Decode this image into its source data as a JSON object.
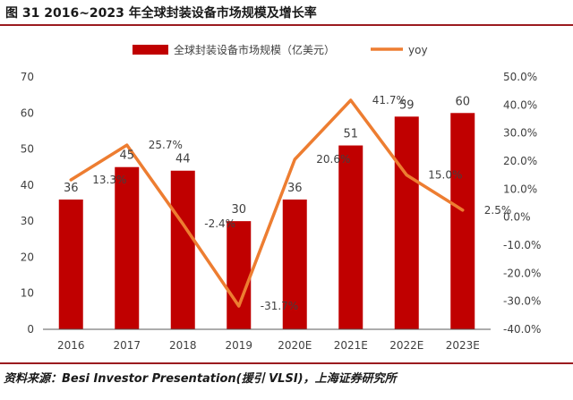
{
  "figure_title": "图 31 2016~2023 年全球封装设备市场规模及增长率",
  "source": "资料来源：Besi Investor Presentation(援引 VLSI)，上海证券研究所",
  "colors": {
    "bar": "#c00000",
    "line": "#ed7d31",
    "rule": "#9b1b1f",
    "axis": "#595959"
  },
  "chart_data": {
    "type": "bar",
    "categories": [
      "2016",
      "2017",
      "2018",
      "2019",
      "2020E",
      "2021E",
      "2022E",
      "2023E"
    ],
    "series": [
      {
        "name": "全球封装设备市场规模（亿美元）",
        "type": "bar",
        "axis": "left",
        "values": [
          36,
          45,
          44,
          30,
          36,
          51,
          59,
          60
        ],
        "labels": [
          "36",
          "45",
          "44",
          "30",
          "36",
          "51",
          "59",
          "60"
        ]
      },
      {
        "name": "yoy",
        "type": "line",
        "axis": "right",
        "values": [
          13.3,
          25.7,
          -2.4,
          -31.7,
          20.6,
          41.7,
          15.0,
          2.5
        ],
        "labels": [
          "13.3%",
          "25.7%",
          "-2.4%",
          "-31.7%",
          "20.6%",
          "41.7%",
          "15.0%",
          "2.5%"
        ]
      }
    ],
    "y_left": {
      "ylim": [
        0,
        70
      ],
      "ticks": [
        0,
        10,
        20,
        30,
        40,
        50,
        60,
        70
      ],
      "tick_labels": [
        "0",
        "10",
        "20",
        "30",
        "40",
        "50",
        "60",
        "70"
      ]
    },
    "y_right": {
      "ylim": [
        -40,
        50
      ],
      "ticks": [
        -40,
        -30,
        -20,
        -10,
        0,
        10,
        20,
        30,
        40,
        50
      ],
      "tick_labels": [
        "-40.0%",
        "-30.0%",
        "-20.0%",
        "-10.0%",
        "0.0%",
        "10.0%",
        "20.0%",
        "30.0%",
        "40.0%",
        "50.0%"
      ]
    },
    "legend": {
      "position": "top"
    },
    "grid": false,
    "title": "",
    "xlabel": "",
    "ylabel": ""
  }
}
